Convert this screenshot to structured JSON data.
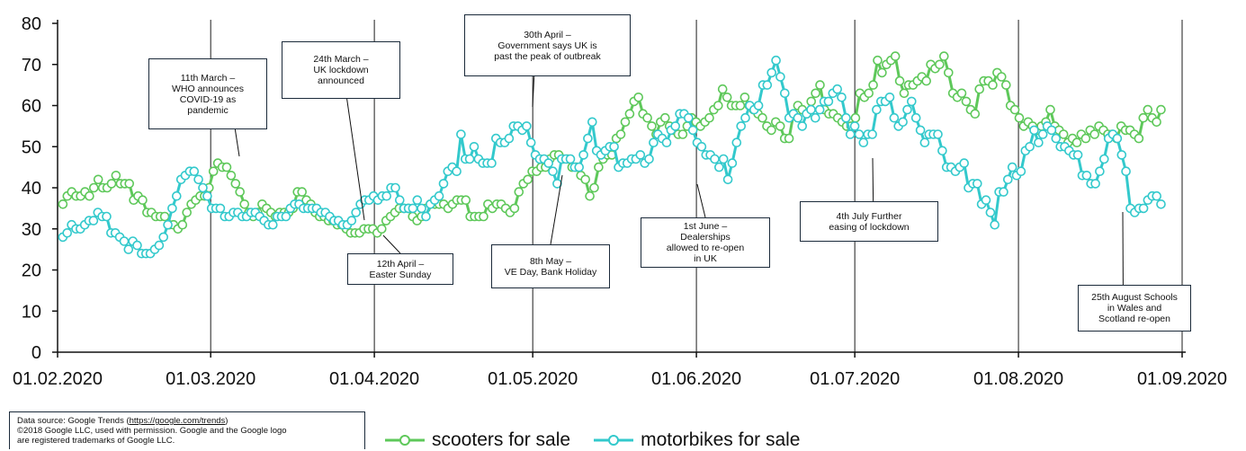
{
  "source_note": {
    "prefix": "Data source:  Google Trends (",
    "link": "https://google.com/trends",
    "suffix": ")",
    "line2": "©2018 Google LLC, used with permission. Google and the Google logo",
    "line3": "are registered trademarks of Google LLC."
  },
  "chart_data": {
    "type": "line",
    "title": "",
    "xlabel": "",
    "ylabel": "",
    "ylim": [
      0,
      80
    ],
    "yticks": [
      0,
      10,
      20,
      30,
      40,
      50,
      60,
      70,
      80
    ],
    "x_start": "01.02.2020",
    "x_end": "01.09.2020",
    "xticks": [
      "01.02.2020",
      "01.03.2020",
      "01.04.2020",
      "01.05.2020",
      "01.06.2020",
      "01.07.2020",
      "01.08.2020",
      "01.09.2020"
    ],
    "grid": false,
    "legend_position": "bottom",
    "series": [
      {
        "name": "scooters for sale",
        "color": "#5ec85a",
        "x_first": "2020-02-02",
        "x_last": "2020-08-28",
        "values": [
          36,
          38,
          39,
          38,
          38,
          39,
          38,
          40,
          42,
          40,
          40,
          41,
          43,
          41,
          41,
          41,
          37,
          38,
          37,
          34,
          34,
          33,
          33,
          33,
          31,
          31,
          30,
          31,
          34,
          36,
          37,
          38,
          38,
          40,
          44,
          46,
          45,
          45,
          43,
          41,
          39,
          36,
          34,
          33,
          34,
          36,
          35,
          34,
          33,
          34,
          34,
          34,
          35,
          39,
          39,
          37,
          36,
          34,
          33,
          33,
          32,
          32,
          31,
          31,
          30,
          29,
          29,
          29,
          30,
          30,
          30,
          29,
          30,
          32,
          33,
          34,
          35,
          35,
          35,
          33,
          32,
          33,
          35,
          36,
          36,
          36,
          36,
          35,
          36,
          37,
          37,
          37,
          33,
          33,
          33,
          33,
          36,
          35,
          36,
          36,
          35,
          34,
          35,
          39,
          41,
          42,
          44,
          44,
          45,
          45,
          47,
          48,
          48,
          47,
          47,
          45,
          45,
          43,
          42,
          38,
          40,
          45,
          47,
          48,
          48,
          52,
          53,
          56,
          58,
          61,
          62,
          58,
          57,
          55,
          53,
          56,
          57,
          55,
          54,
          53,
          53,
          55,
          57,
          56,
          55,
          56,
          57,
          59,
          60,
          64,
          62,
          60,
          60,
          60,
          62,
          60,
          59,
          58,
          57,
          55,
          54,
          56,
          55,
          52,
          52,
          58,
          60,
          59,
          58,
          61,
          63,
          65,
          59,
          58,
          58,
          57,
          56,
          55,
          55,
          57,
          63,
          62,
          63,
          65,
          71,
          68,
          70,
          71,
          72,
          66,
          63,
          65,
          65,
          66,
          67,
          66,
          70,
          69,
          70,
          72,
          68,
          63,
          62,
          63,
          61,
          59,
          58,
          64,
          66,
          66,
          65,
          68,
          67,
          65,
          60,
          59,
          57,
          55,
          56,
          55,
          54,
          55,
          56,
          59,
          55,
          54,
          53,
          51,
          52,
          51,
          53,
          52,
          54,
          53,
          55,
          54,
          53,
          53,
          52,
          55,
          54,
          54,
          53,
          52,
          57,
          59,
          57,
          56,
          59
        ]
      },
      {
        "name": "motorbikes for sale",
        "color": "#33c9cc",
        "x_first": "2020-02-02",
        "x_last": "2020-08-28",
        "values": [
          28,
          29,
          31,
          30,
          30,
          31,
          32,
          32,
          34,
          33,
          33,
          29,
          29,
          28,
          27,
          25,
          27,
          26,
          24,
          24,
          24,
          25,
          26,
          28,
          31,
          35,
          38,
          42,
          43,
          44,
          44,
          42,
          40,
          38,
          35,
          35,
          35,
          33,
          33,
          34,
          34,
          33,
          33,
          34,
          34,
          33,
          32,
          31,
          31,
          33,
          33,
          33,
          35,
          36,
          36,
          35,
          35,
          35,
          35,
          34,
          34,
          33,
          32,
          32,
          31,
          31,
          32,
          34,
          36,
          37,
          37,
          38,
          37,
          38,
          38,
          40,
          40,
          37,
          35,
          35,
          35,
          37,
          35,
          33,
          36,
          37,
          38,
          41,
          44,
          45,
          44,
          53,
          47,
          47,
          50,
          47,
          46,
          46,
          46,
          52,
          51,
          51,
          52,
          55,
          55,
          54,
          55,
          51,
          48,
          47,
          47,
          46,
          44,
          41,
          47,
          47,
          47,
          45,
          45,
          48,
          52,
          56,
          49,
          48,
          49,
          50,
          50,
          45,
          46,
          46,
          47,
          47,
          48,
          46,
          47,
          51,
          53,
          52,
          51,
          54,
          55,
          58,
          58,
          57,
          54,
          51,
          50,
          48,
          48,
          47,
          45,
          47,
          42,
          46,
          51,
          55,
          57,
          60,
          59,
          60,
          65,
          65,
          68,
          71,
          67,
          63,
          57,
          58,
          57,
          55,
          58,
          59,
          57,
          59,
          61,
          61,
          63,
          64,
          62,
          57,
          53,
          55,
          53,
          51,
          53,
          53,
          59,
          61,
          61,
          62,
          57,
          55,
          56,
          59,
          61,
          57,
          54,
          51,
          53,
          53,
          53,
          49,
          45,
          45,
          44,
          45,
          46,
          40,
          41,
          41,
          36,
          37,
          34,
          31,
          39,
          39,
          42,
          45,
          43,
          44,
          49,
          50,
          54,
          51,
          53,
          55,
          54,
          52,
          50,
          50,
          49,
          48,
          48,
          43,
          43,
          41,
          41,
          44,
          47,
          52,
          53,
          52,
          48,
          44,
          35,
          34,
          35,
          35,
          37,
          38,
          38,
          36
        ]
      }
    ],
    "annotations": [
      {
        "id": "who",
        "lines": [
          "11th March –",
          "WHO announces",
          "COVID-19 as",
          "pandemic"
        ],
        "date": "2020-03-11"
      },
      {
        "id": "lockdown",
        "lines": [
          "24th March –",
          "UK lockdown",
          "announced"
        ],
        "date": "2020-03-24"
      },
      {
        "id": "easter",
        "lines": [
          "12th April –",
          "Easter Sunday"
        ],
        "date": "2020-04-12"
      },
      {
        "id": "peak",
        "lines": [
          "30th April –",
          "Government says UK is",
          "past the peak of outbreak"
        ],
        "date": "2020-04-30"
      },
      {
        "id": "veday",
        "lines": [
          "8th May –",
          "VE Day, Bank Holiday"
        ],
        "date": "2020-05-08"
      },
      {
        "id": "dealers",
        "lines": [
          "1st June –",
          "Dealerships",
          "allowed to re-open",
          "in UK"
        ],
        "date": "2020-06-01"
      },
      {
        "id": "easing",
        "lines": [
          "4th July  Further",
          "easing of lockdown"
        ],
        "date": "2020-07-04"
      },
      {
        "id": "schools",
        "lines": [
          "25th August Schools",
          "in Wales and",
          "Scotland re-open"
        ],
        "date": "2020-08-25"
      }
    ]
  }
}
